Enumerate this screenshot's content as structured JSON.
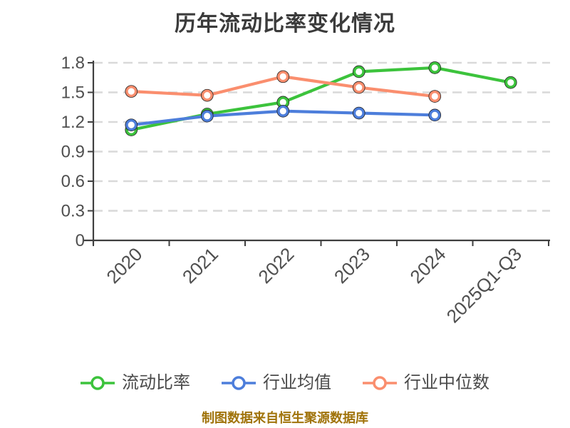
{
  "title": "历年流动比率变化情况",
  "caption": "制图数据来自恒生聚源数据库",
  "colors": {
    "title_text": "#3B3B3B",
    "axis_line": "#3F3F3F",
    "tick_label": "#4F4F4F",
    "grid_line": "#D9D9D9",
    "legend_text": "#4A4A4A",
    "caption_text": "#A0730A",
    "marker_fill": "#FFFFFF",
    "marker_edge": "#222222"
  },
  "chart_data": {
    "type": "line",
    "title": "历年流动比率变化情况",
    "categories": [
      "2020",
      "2021",
      "2022",
      "2023",
      "2024",
      "2025Q1-Q3"
    ],
    "series": [
      {
        "name": "流动比率",
        "key": "current-ratio",
        "color": "#3CC33C",
        "values": [
          1.12,
          1.28,
          1.4,
          1.71,
          1.75,
          1.6
        ]
      },
      {
        "name": "行业均值",
        "key": "industry-average",
        "color": "#4D7EDB",
        "values": [
          1.17,
          1.26,
          1.31,
          1.29,
          1.27,
          null
        ]
      },
      {
        "name": "行业中位数",
        "key": "industry-median",
        "color": "#FA8E6E",
        "values": [
          1.51,
          1.47,
          1.66,
          1.55,
          1.46,
          null
        ]
      }
    ],
    "xlabel": "",
    "ylabel": "",
    "ylim": [
      0,
      1.8
    ],
    "yticks": [
      0,
      0.3,
      0.6,
      0.9,
      1.2,
      1.5,
      1.8
    ],
    "grid": "horizontal-dashed",
    "legend_position": "bottom",
    "marker_style": "white-filled-circle",
    "x_label_rotation_deg": -45
  }
}
